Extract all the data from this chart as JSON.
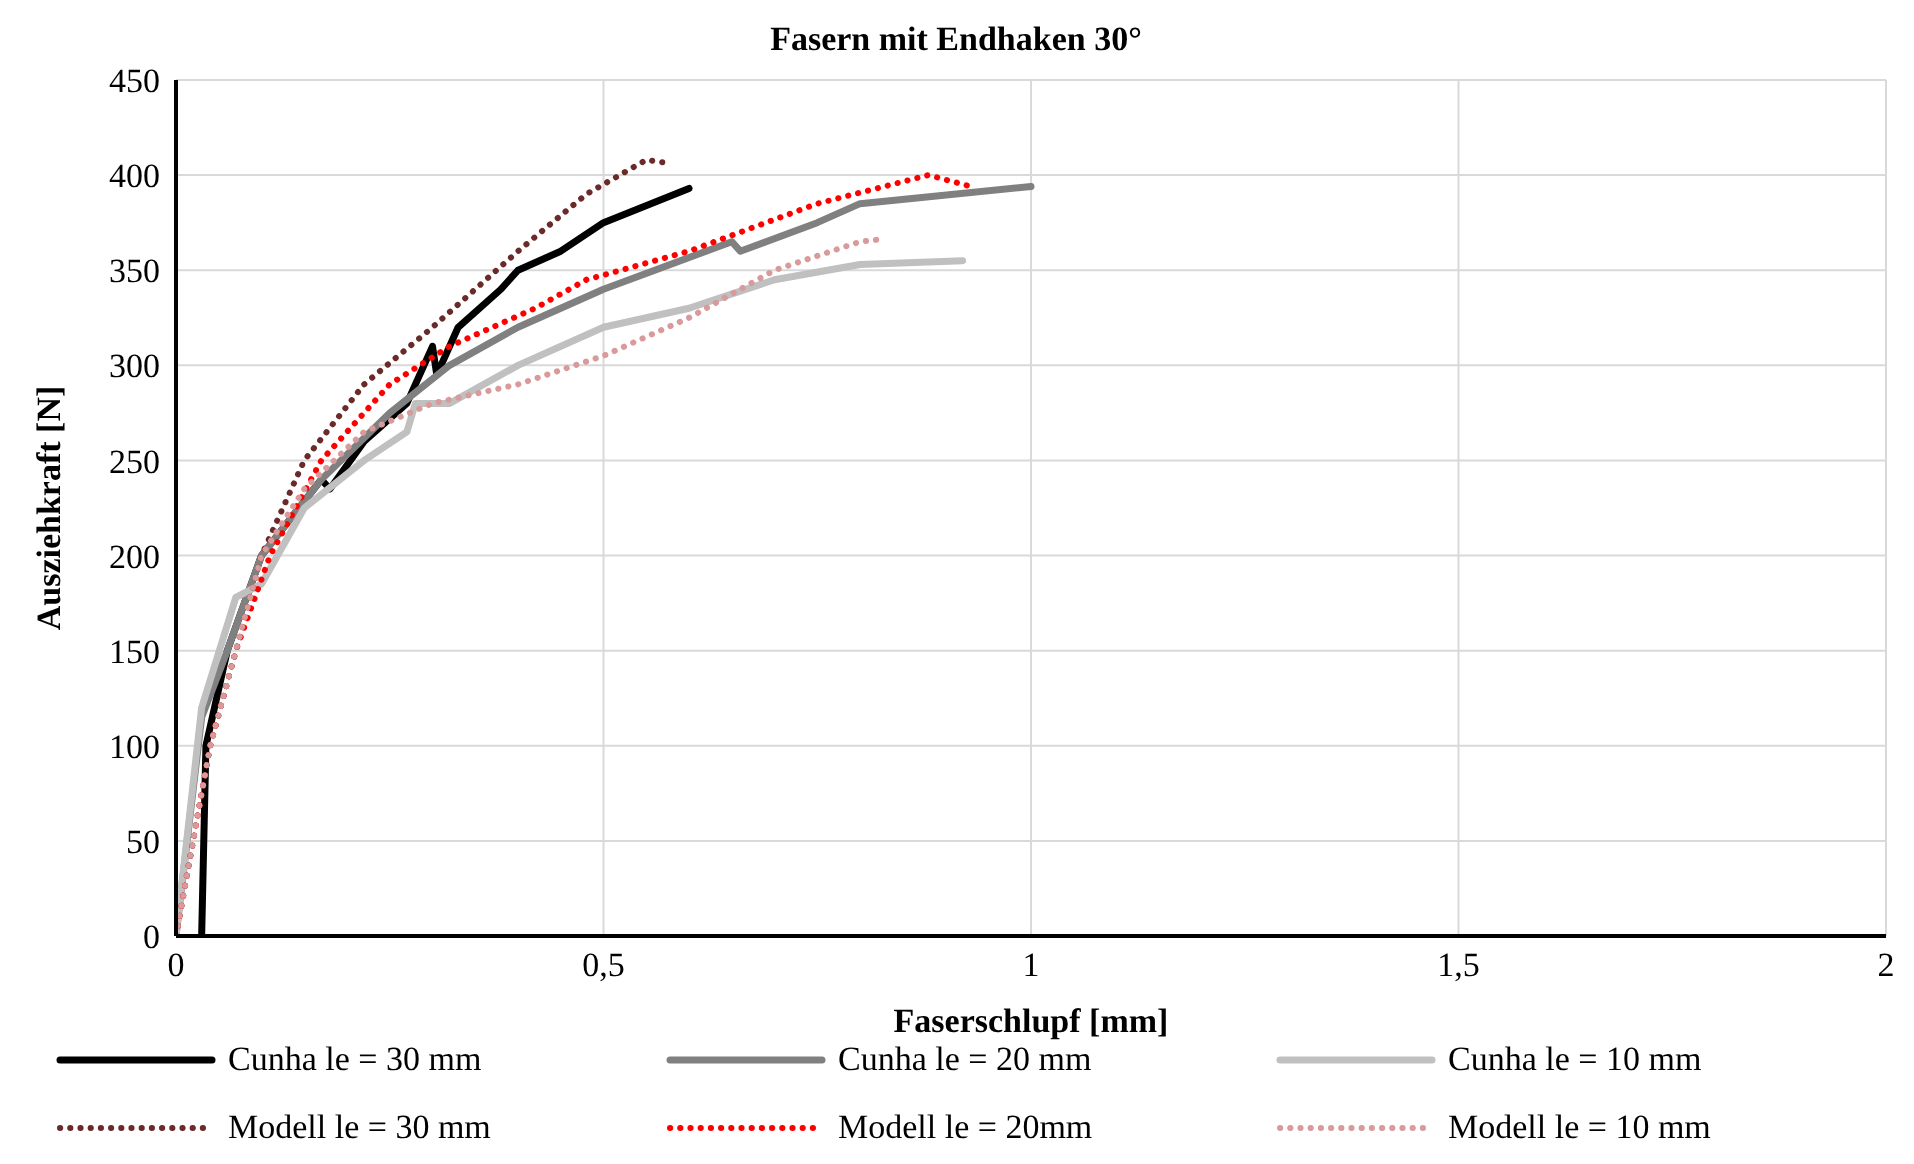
{
  "chart_data": {
    "type": "line",
    "title": "Fasern mit Endhaken 30°",
    "xlabel": "Faserschlupf [mm]",
    "ylabel": "Ausziehkraft [N]",
    "xlim": [
      0,
      2
    ],
    "xticks": [
      0,
      {
        "value": 0.5,
        "label": "0,5"
      },
      1,
      {
        "value": 1.5,
        "label": "1,5"
      },
      2
    ],
    "ylim": [
      0,
      450
    ],
    "yticks": [
      0,
      50,
      100,
      150,
      200,
      250,
      300,
      350,
      400,
      450
    ],
    "grid": true,
    "legend": "bottom",
    "marker": "none",
    "series": [
      {
        "name": "Cunha le = 30 mm",
        "color": "#000000",
        "line_style": "solid",
        "x": [
          0.03,
          0.035,
          0.06,
          0.1,
          0.17,
          0.18,
          0.22,
          0.27,
          0.3,
          0.305,
          0.33,
          0.38,
          0.4,
          0.45,
          0.5,
          0.6
        ],
        "values": [
          0,
          100,
          150,
          200,
          240,
          235,
          260,
          280,
          310,
          295,
          320,
          340,
          350,
          360,
          375,
          393
        ]
      },
      {
        "name": "Cunha le = 20 mm",
        "color": "#808080",
        "line_style": "solid",
        "x": [
          0,
          0.03,
          0.06,
          0.1,
          0.17,
          0.25,
          0.32,
          0.4,
          0.5,
          0.65,
          0.66,
          0.75,
          0.8,
          1.0
        ],
        "values": [
          0,
          115,
          150,
          200,
          240,
          275,
          300,
          320,
          340,
          365,
          360,
          375,
          385,
          394
        ]
      },
      {
        "name": "Cunha le = 10 mm",
        "color": "#c0c0c0",
        "line_style": "solid",
        "x": [
          0,
          0.03,
          0.07,
          0.1,
          0.15,
          0.22,
          0.27,
          0.28,
          0.32,
          0.4,
          0.5,
          0.6,
          0.7,
          0.8,
          0.92
        ],
        "values": [
          0,
          120,
          178,
          185,
          225,
          250,
          265,
          280,
          280,
          300,
          320,
          330,
          345,
          353,
          355
        ]
      },
      {
        "name": "Modell le = 30 mm",
        "color": "#6b2a2a",
        "line_style": "dotted",
        "x": [
          0,
          0.02,
          0.04,
          0.07,
          0.1,
          0.15,
          0.22,
          0.3,
          0.4,
          0.48,
          0.55,
          0.58
        ],
        "values": [
          0,
          50,
          100,
          150,
          200,
          250,
          290,
          320,
          360,
          390,
          408,
          406
        ]
      },
      {
        "name": "Modell le = 20mm",
        "color": "#ff0000",
        "line_style": "dotted",
        "x": [
          0,
          0.04,
          0.07,
          0.11,
          0.17,
          0.25,
          0.32,
          0.42,
          0.48,
          0.6,
          0.75,
          0.88,
          0.93
        ],
        "values": [
          0,
          100,
          150,
          200,
          250,
          290,
          310,
          330,
          345,
          360,
          385,
          400,
          394
        ]
      },
      {
        "name": "Modell le = 10 mm",
        "color": "#d89a9a",
        "line_style": "dotted",
        "x": [
          0,
          0.04,
          0.07,
          0.1,
          0.15,
          0.22,
          0.3,
          0.4,
          0.5,
          0.6,
          0.7,
          0.8,
          0.82
        ],
        "values": [
          0,
          100,
          150,
          200,
          235,
          265,
          280,
          290,
          305,
          325,
          350,
          365,
          366
        ]
      }
    ]
  }
}
